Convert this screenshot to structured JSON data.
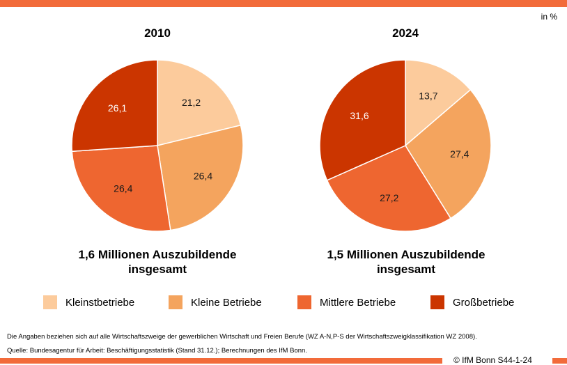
{
  "unit": "in %",
  "legend": [
    {
      "label": "Kleinstbetriebe",
      "color": "#fccb9c"
    },
    {
      "label": "Kleine Betriebe",
      "color": "#f4a45e"
    },
    {
      "label": "Mittlere Betriebe",
      "color": "#ee6630"
    },
    {
      "label": "Großbetriebe",
      "color": "#cb3500"
    }
  ],
  "charts": [
    {
      "title": "2010",
      "total_line1": "1,6 Millionen Auszubildende",
      "total_line2": "insgesamt"
    },
    {
      "title": "2024",
      "total_line1": "1,5 Millionen Auszubildende",
      "total_line2": "insgesamt"
    }
  ],
  "chart_data": [
    {
      "type": "pie",
      "title": "2010",
      "categories": [
        "Kleinstbetriebe",
        "Kleine Betriebe",
        "Mittlere Betriebe",
        "Großbetriebe"
      ],
      "values": [
        21.2,
        26.4,
        26.4,
        26.1
      ],
      "labels": [
        "21,2",
        "26,4",
        "26,4",
        "26,1"
      ]
    },
    {
      "type": "pie",
      "title": "2024",
      "categories": [
        "Kleinstbetriebe",
        "Kleine Betriebe",
        "Mittlere Betriebe",
        "Großbetriebe"
      ],
      "values": [
        13.7,
        27.4,
        27.2,
        31.6
      ],
      "labels": [
        "13,7",
        "27,4",
        "27,2",
        "31,6"
      ]
    }
  ],
  "notes": {
    "line1": "Die Angaben beziehen sich auf alle Wirtschaftszweige der gewerblichen Wirtschaft und Freien Berufe (WZ A-N,P-S der Wirtschaftszweigklassifikation WZ 2008).",
    "line2": "Quelle: Bundesagentur für Arbeit: Beschäftigungsstatistik (Stand 31.12.); Berechnungen des IfM Bonn."
  },
  "copyright": "© IfM Bonn S44-1-24"
}
